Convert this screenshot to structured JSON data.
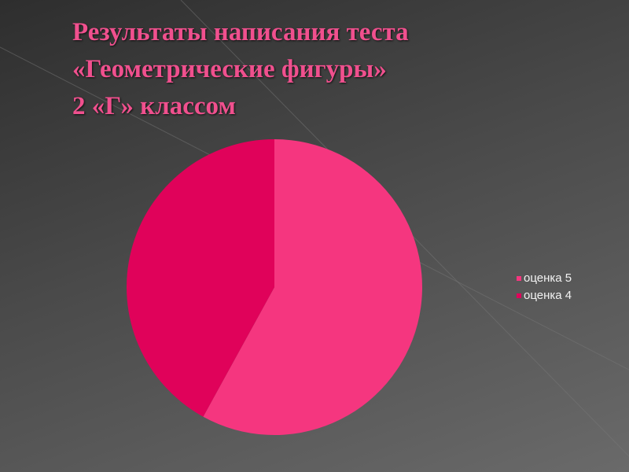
{
  "chart_data": {
    "type": "pie",
    "title": "Результаты написания теста\n«Геометрические фигуры»\n2 «Г» классом",
    "categories": [
      "оценка 5",
      "оценка 4"
    ],
    "values": [
      58,
      42
    ],
    "colors": [
      "#f5367f",
      "#e0025a"
    ],
    "legend": "right"
  }
}
